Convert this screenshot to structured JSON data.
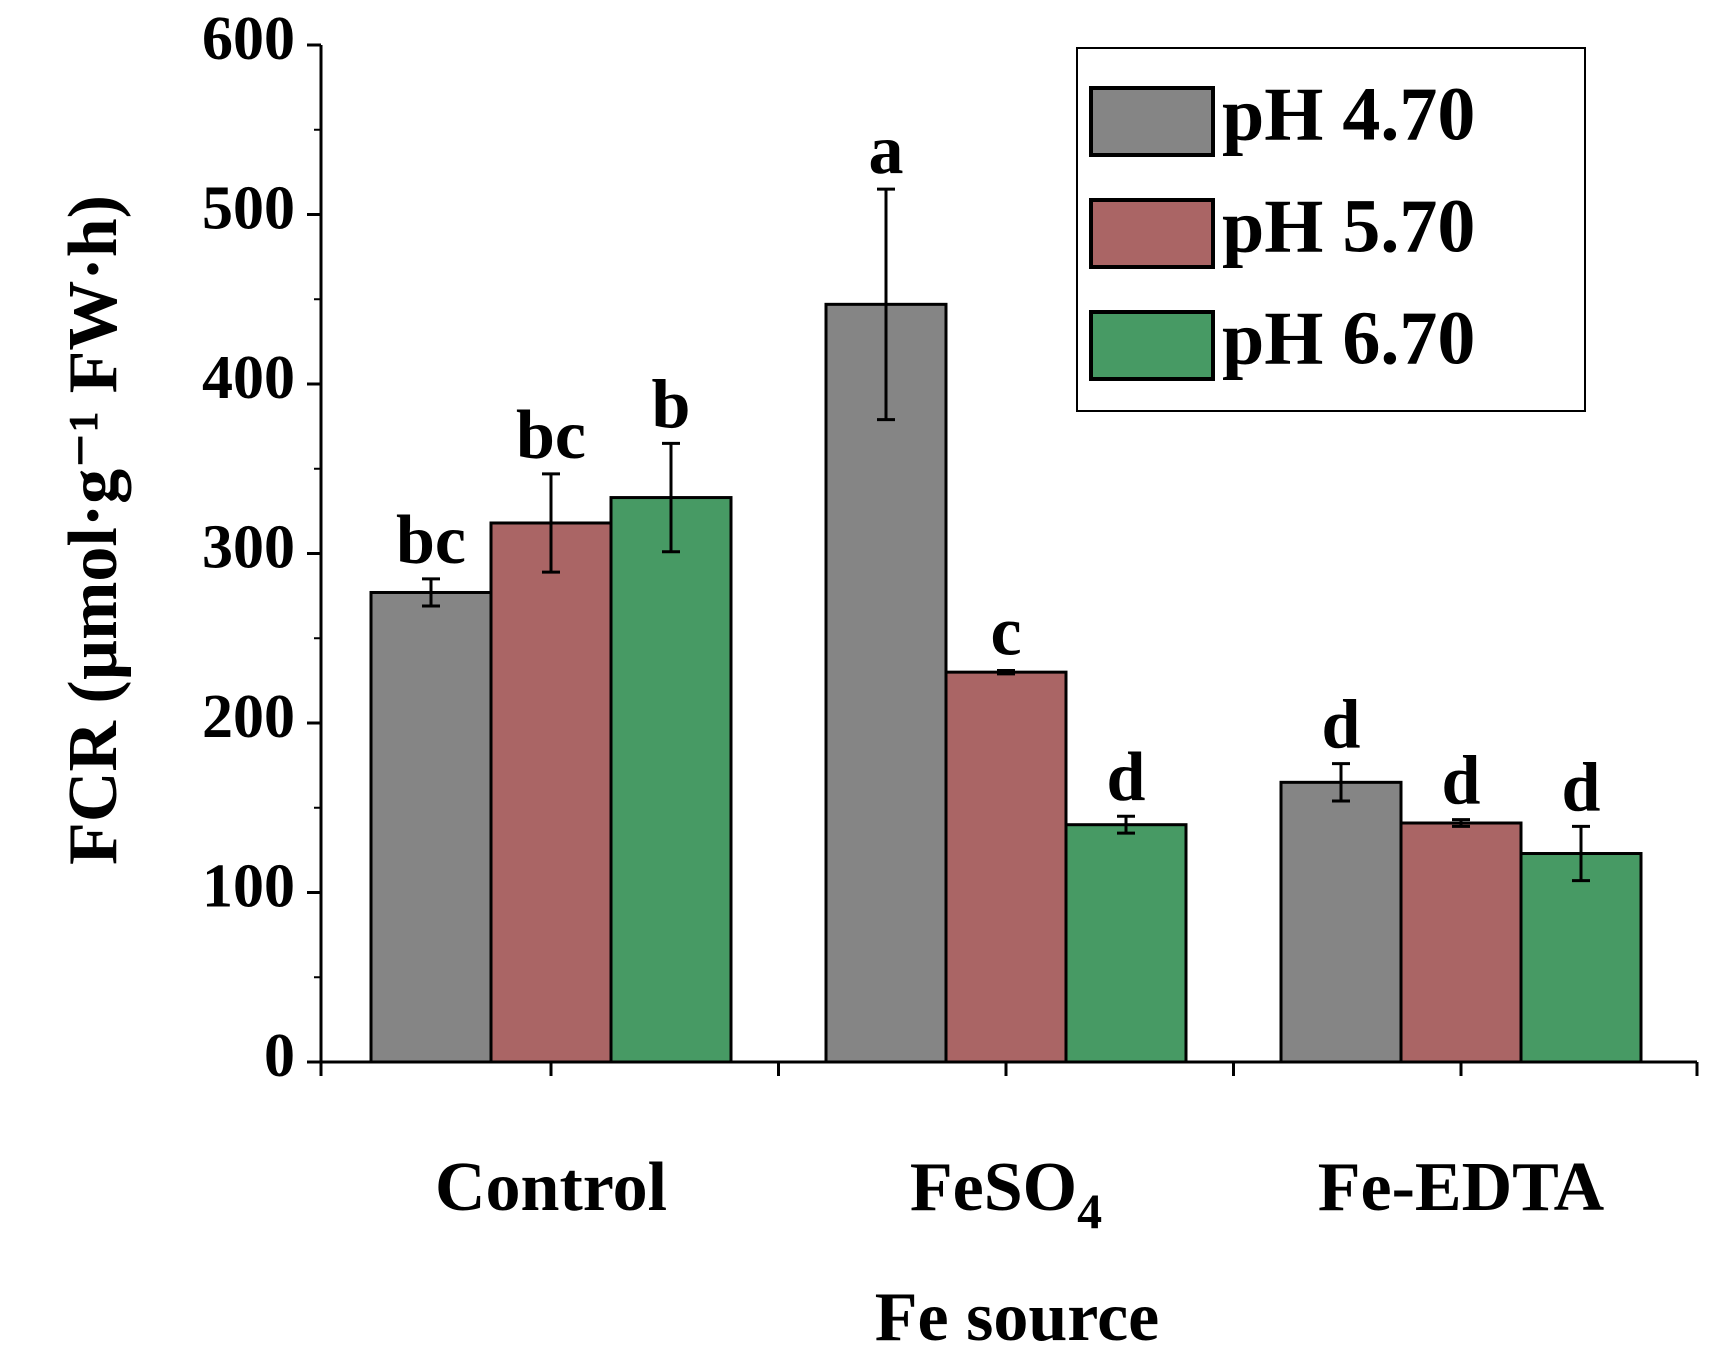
{
  "chart_data": {
    "type": "bar",
    "xlabel": "Fe source",
    "ylabel": "FCR (µmol·g⁻¹ FW·h)",
    "ylim": [
      0,
      600
    ],
    "yticks": [
      0,
      100,
      200,
      300,
      400,
      500,
      600
    ],
    "grid": false,
    "legend_position": "top-right",
    "categories": [
      {
        "label": "Control",
        "sub": ""
      },
      {
        "label": "FeSO",
        "sub": "4"
      },
      {
        "label": "Fe-EDTA",
        "sub": ""
      }
    ],
    "series": [
      {
        "name": "pH 4.70",
        "color": "#858585",
        "values": [
          277,
          447,
          165
        ],
        "errors": [
          8,
          68,
          11
        ],
        "letters": [
          "bc",
          "a",
          "d"
        ]
      },
      {
        "name": "pH 5.70",
        "color": "#aa6565",
        "values": [
          318,
          230,
          141
        ],
        "errors": [
          29,
          1,
          2
        ],
        "letters": [
          "bc",
          "c",
          "d"
        ]
      },
      {
        "name": "pH 6.70",
        "color": "#479a64",
        "values": [
          333,
          140,
          123
        ],
        "errors": [
          32,
          5,
          16
        ],
        "letters": [
          "b",
          "d",
          "d"
        ]
      }
    ]
  }
}
